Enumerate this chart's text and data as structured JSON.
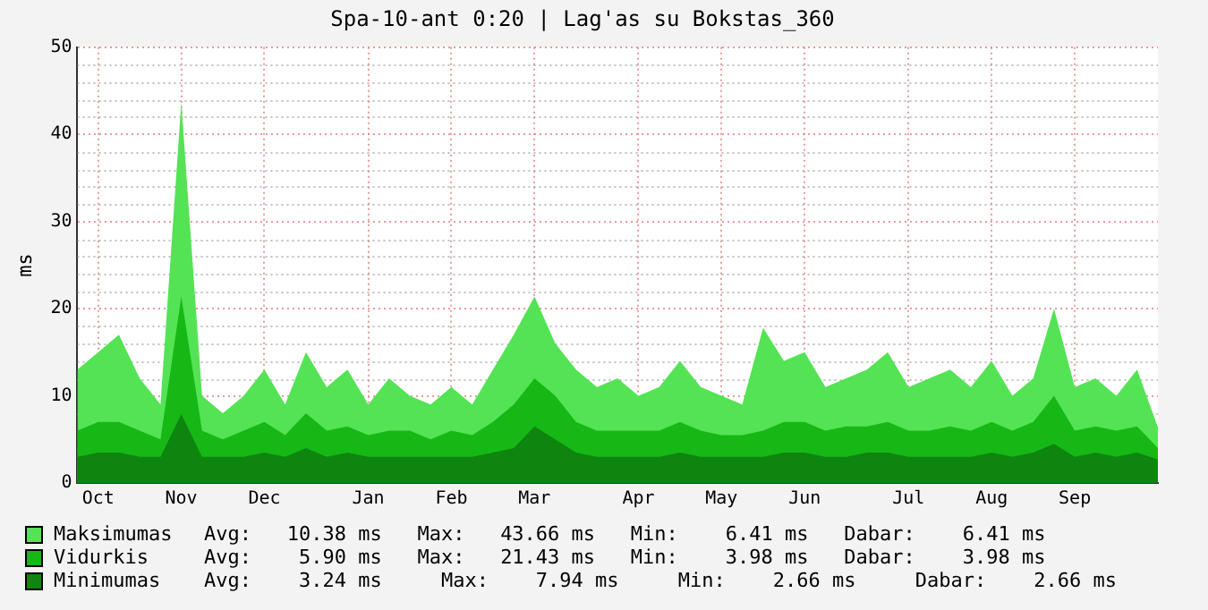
{
  "chart_data": {
    "type": "area",
    "title": "Spa-10-ant 0:20 | Lag'as su Bokstas_360",
    "ylabel": "ms",
    "categories": [
      null,
      "Oct",
      null,
      null,
      null,
      "Nov",
      null,
      null,
      null,
      "Dec",
      null,
      null,
      null,
      null,
      "Jan",
      null,
      null,
      null,
      "Feb",
      null,
      null,
      null,
      "Mar",
      null,
      null,
      null,
      null,
      "Apr",
      null,
      null,
      null,
      "May",
      null,
      null,
      null,
      "Jun",
      null,
      null,
      null,
      null,
      "Jul",
      null,
      null,
      null,
      "Aug",
      null,
      null,
      null,
      "Sep",
      null,
      null,
      null,
      null
    ],
    "series": [
      {
        "name": "Maksimumas",
        "color": "#54e354",
        "values": [
          13,
          15,
          17,
          12,
          9,
          43.7,
          10,
          8,
          10,
          13,
          9,
          15,
          11,
          13,
          9,
          12,
          10,
          9,
          11,
          9,
          13,
          17,
          21.4,
          16,
          13,
          11,
          12,
          10,
          11,
          14,
          11,
          10,
          9,
          17.8,
          14,
          15,
          11,
          12,
          13,
          15,
          11,
          12,
          13,
          11,
          14,
          10,
          12,
          20,
          11,
          12,
          10,
          13,
          6.4
        ]
      },
      {
        "name": "Vidurkis",
        "color": "#16b816",
        "values": [
          6,
          7,
          7,
          6,
          5,
          21.4,
          6,
          5,
          6,
          7,
          5.5,
          8,
          6,
          6.5,
          5.5,
          6,
          6,
          5,
          6,
          5.5,
          7,
          9,
          12,
          10,
          7,
          6,
          6,
          6,
          6,
          7,
          6,
          5.5,
          5.5,
          6,
          7,
          7,
          6,
          6.5,
          6.5,
          7,
          6,
          6,
          6.5,
          6,
          7,
          6,
          7,
          10,
          6,
          6.5,
          6,
          6.5,
          4
        ]
      },
      {
        "name": "Minimumas",
        "color": "#0e850e",
        "values": [
          3,
          3.5,
          3.5,
          3,
          3,
          7.9,
          3,
          3,
          3,
          3.5,
          3,
          4,
          3,
          3.5,
          3,
          3,
          3,
          3,
          3,
          3,
          3.5,
          4,
          6.5,
          5,
          3.5,
          3,
          3,
          3,
          3,
          3.5,
          3,
          3,
          3,
          3,
          3.5,
          3.5,
          3,
          3,
          3.5,
          3.5,
          3,
          3,
          3,
          3,
          3.5,
          3,
          3.5,
          4.5,
          3,
          3.5,
          3,
          3.5,
          2.7
        ]
      }
    ],
    "annotations": [
      "Avg:   10.38 ms   Max:   43.66 ms   Min:    6.41 ms   Dabar:    6.41 ms",
      "Avg:    5.90 ms   Max:   21.43 ms   Min:    3.98 ms   Dabar:    3.98 ms",
      "Avg:    3.24 ms     Max:    7.94 ms     Min:    2.66 ms     Dabar:    2.66 ms"
    ],
    "ylim": [
      0,
      50
    ],
    "yticks": [
      0,
      10,
      20,
      30,
      40,
      50
    ],
    "grid": true,
    "legend": "bottom"
  }
}
